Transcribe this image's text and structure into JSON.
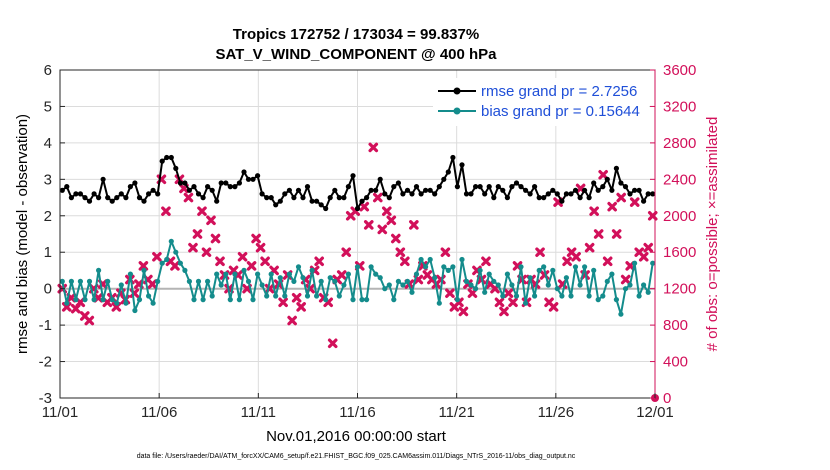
{
  "chart_data": {
    "type": "line",
    "title": "Tropics 172752 / 173034 = 99.837%",
    "subtitle": "SAT_V_WIND_COMPONENT @ 400 hPa",
    "xlabel": "Nov.01,2016 00:00:00 start",
    "ylabel": "rmse and bias (model - observation)",
    "y2label": "# of obs: o=possible; ×=assimilated",
    "footnote": "data file: /Users/raeder/DAI/ATM_forcXX/CAM6_setup/f.e21.FHIST_BGC.f09_025.CAM6assim.011/Diags_NTrS_2016-11/obs_diag_output.nc",
    "x_tick_labels": [
      "11/01",
      "11/06",
      "11/11",
      "11/16",
      "11/21",
      "11/26",
      "12/01"
    ],
    "x_tick_days": [
      0,
      5,
      10,
      15,
      20,
      25,
      30
    ],
    "xlim": [
      0,
      30
    ],
    "ylim": [
      -3,
      6
    ],
    "y_ticks": [
      -3,
      -2,
      -1,
      0,
      1,
      2,
      3,
      4,
      5,
      6
    ],
    "y2lim": [
      0,
      3600
    ],
    "y2_ticks": [
      0,
      400,
      800,
      1200,
      1600,
      2000,
      2400,
      2800,
      3200,
      3600
    ],
    "legend_position": "top-right",
    "colors": {
      "rmse": "#000000",
      "bias": "#148C8C",
      "obs": "#D2105A",
      "zero_line": "#b4b4b4"
    },
    "series": [
      {
        "name": "rmse grand pr = 2.7256",
        "values": [
          2.7,
          2.8,
          2.5,
          2.6,
          2.6,
          2.5,
          2.4,
          2.6,
          2.5,
          3.0,
          2.5,
          2.4,
          2.5,
          2.6,
          2.5,
          2.8,
          2.9,
          2.5,
          2.4,
          2.6,
          2.7,
          2.6,
          3.5,
          3.6,
          3.6,
          3.3,
          2.9,
          2.9,
          2.7,
          2.8,
          2.6,
          2.5,
          2.8,
          2.7,
          2.4,
          2.9,
          2.9,
          2.8,
          2.8,
          2.9,
          3.2,
          3.0,
          3.0,
          3.1,
          2.6,
          2.5,
          2.5,
          2.3,
          2.4,
          2.6,
          2.7,
          2.5,
          2.7,
          2.5,
          2.8,
          2.4,
          2.4,
          2.3,
          2.2,
          2.5,
          2.7,
          2.5,
          2.5,
          2.8,
          3.1,
          2.2,
          2.4,
          2.5,
          2.7,
          2.7,
          3.0,
          2.6,
          2.5,
          2.8,
          2.9,
          2.6,
          2.7,
          2.6,
          2.8,
          2.6,
          2.7,
          2.7,
          2.6,
          2.8,
          3.0,
          3.2,
          3.6,
          2.8,
          3.4,
          2.6,
          2.6,
          2.8,
          2.8,
          2.6,
          2.8,
          2.5,
          2.8,
          2.7,
          2.5,
          2.8,
          2.9,
          2.8,
          2.7,
          2.6,
          2.8,
          2.5,
          2.5,
          2.6,
          2.7,
          2.6,
          2.4,
          2.6,
          2.6,
          2.7,
          2.5,
          2.7,
          2.5,
          2.9,
          2.7,
          2.8,
          3.0,
          2.7,
          3.3,
          2.9,
          2.8,
          2.6,
          2.7,
          2.7,
          2.4,
          2.6,
          2.6
        ]
      },
      {
        "name": "bias grand pr = 0.15644",
        "values": [
          0.2,
          -0.4,
          0.2,
          -0.3,
          0.2,
          -0.3,
          0.2,
          -0.3,
          0.5,
          -0.3,
          0.2,
          -0.3,
          -0.4,
          0.1,
          -0.4,
          0.4,
          -0.6,
          -0.3,
          0.5,
          -0.2,
          -0.4,
          0.2,
          0.7,
          0.8,
          1.3,
          1.0,
          0.7,
          0.5,
          0.2,
          -0.3,
          0.2,
          -0.3,
          0.2,
          -0.2,
          0.4,
          0.1,
          0.4,
          -0.3,
          0.4,
          -0.3,
          0.5,
          0.2,
          -0.3,
          0.4,
          0.1,
          -0.2,
          0.4,
          -0.2,
          0.3,
          -0.2,
          0.4,
          0.2,
          0.6,
          0.3,
          -0.2,
          0.5,
          -0.2,
          0.2,
          -0.3,
          0.3,
          0.2,
          -0.2,
          0.1,
          0.4,
          -0.3,
          0.6,
          -0.3,
          -0.3,
          0.6,
          0.4,
          0.3,
          0.0,
          0.1,
          -0.3,
          0.2,
          0.1,
          0.2,
          -0.1,
          0.4,
          0.8,
          0.6,
          0.8,
          0.3,
          -0.4,
          0.6,
          0.5,
          0.6,
          -0.3,
          0.8,
          0.2,
          0.1,
          0.0,
          0.5,
          -0.1,
          0.4,
          0.2,
          0.1,
          -0.2,
          0.4,
          0.1,
          -0.2,
          0.6,
          -0.4,
          0.3,
          -0.2,
          0.5,
          0.6,
          0.1,
          0.5,
          0.0,
          -0.2,
          0.3,
          -0.2,
          0.6,
          0.1,
          0.6,
          -0.2,
          0.5,
          -0.3,
          -0.2,
          0.2,
          0.4,
          -0.3,
          -0.7,
          0.0,
          0.1,
          0.7,
          -0.2,
          0.1,
          -0.1,
          0.7
        ]
      }
    ],
    "obs_assimilated": [
      1200,
      1000,
      1100,
      980,
      1050,
      900,
      850,
      1200,
      1100,
      1250,
      1050,
      1100,
      1000,
      1150,
      1080,
      1300,
      1150,
      1250,
      1450,
      1300,
      1250,
      1550,
      2400,
      2050,
      1500,
      1450,
      2400,
      2300,
      2200,
      1650,
      1800,
      2050,
      1600,
      1950,
      1750,
      1500,
      1350,
      1200,
      1400,
      1350,
      1550,
      1200,
      1450,
      1750,
      1650,
      1500,
      1200,
      1400,
      1250,
      1050,
      1350,
      850,
      1100,
      1000,
      1300,
      1200,
      1400,
      1500,
      1100,
      1050,
      600,
      1300,
      1350,
      1600,
      2000,
      2050,
      1450,
      2100,
      1900,
      2750,
      2200,
      1850,
      2050,
      1950,
      1750,
      1600,
      1500,
      1250,
      1900,
      1300,
      1450,
      1350,
      1300,
      1250,
      1300,
      1600,
      1150,
      1000,
      1050,
      950,
      1250,
      1150,
      1400,
      1300,
      1500,
      1250,
      1200,
      1050,
      950,
      1150,
      1050,
      1450,
      1300,
      1050,
      1300,
      1250,
      1600,
      1350,
      1050,
      1000,
      2150,
      1250,
      1500,
      1600,
      1550,
      2300,
      1350,
      1650,
      2050,
      1800,
      2450,
      1500,
      2100,
      1800,
      2200,
      1300,
      1450,
      2150,
      1600,
      1550,
      1650,
      2000
    ]
  }
}
